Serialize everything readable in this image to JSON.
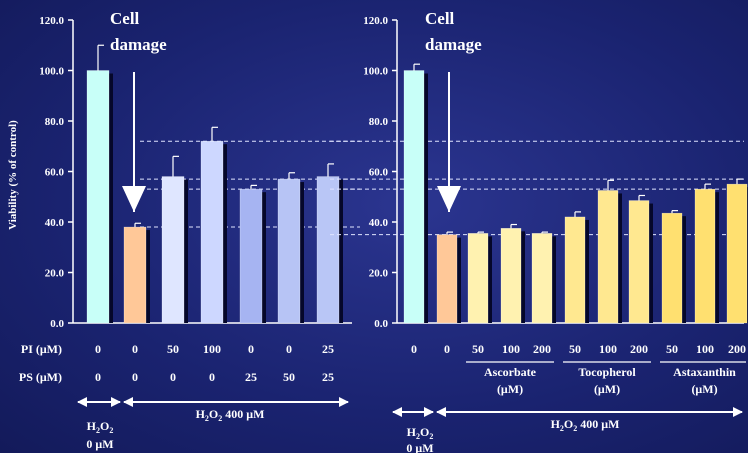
{
  "chart_data": [
    {
      "type": "bar",
      "ylabel": "Viability (% of control)",
      "ylim": [
        0,
        120
      ],
      "yticks": [
        "0.0",
        "20.0",
        "40.0",
        "60.0",
        "80.0",
        "100.0",
        "120.0"
      ],
      "annotation": [
        "Cell",
        "damage"
      ],
      "values": [
        100,
        38,
        58,
        72,
        53,
        57,
        58
      ],
      "errors": [
        10,
        1.5,
        8,
        5.5,
        1.5,
        2.5,
        5
      ],
      "colors": [
        "#c8fff8",
        "#ffc898",
        "#dfe6ff",
        "#cdd7ff",
        "#a6b4f2",
        "#b7c4f5",
        "#b9c6f6"
      ],
      "rows": [
        {
          "label": "PI (μM)",
          "values": [
            "0",
            "0",
            "50",
            "100",
            "0",
            "0",
            "25"
          ]
        },
        {
          "label": "PS (μM)",
          "values": [
            "0",
            "0",
            "0",
            "0",
            "25",
            "50",
            "25"
          ]
        }
      ],
      "reference_lines": [
        38,
        53,
        57,
        72
      ],
      "control_label": [
        "H2O2",
        "0 μM"
      ],
      "treated_label": "H2O2 400 μM"
    },
    {
      "type": "bar",
      "ylim": [
        0,
        120
      ],
      "yticks": [
        "0.0",
        "20.0",
        "40.0",
        "60.0",
        "80.0",
        "100.0",
        "120.0"
      ],
      "annotation": [
        "Cell",
        "damage"
      ],
      "values": [
        100,
        35,
        35.5,
        37.5,
        35.5,
        42,
        52.5,
        48.5,
        43.5,
        53,
        55
      ],
      "errors": [
        2.5,
        1,
        0.5,
        1.5,
        0.5,
        2,
        4,
        2,
        1,
        2,
        2
      ],
      "colors": [
        "#c8fff8",
        "#ffc898",
        "#fff2b0",
        "#fff2b0",
        "#fff2b0",
        "#ffe890",
        "#ffe890",
        "#ffe890",
        "#ffe070",
        "#ffe070",
        "#ffe070"
      ],
      "row": [
        "0",
        "0",
        "50",
        "100",
        "200",
        "50",
        "100",
        "200",
        "50",
        "100",
        "200"
      ],
      "groups": [
        {
          "name": "Ascorbate",
          "unit": "(μM)"
        },
        {
          "name": "Tocopherol",
          "unit": "(μM)"
        },
        {
          "name": "Astaxanthin",
          "unit": "(μM)"
        }
      ],
      "reference_lines": [
        35,
        53,
        57,
        72
      ],
      "control_label": [
        "H2O2",
        "0 μM"
      ],
      "treated_label": "H2O2 400 μM"
    }
  ]
}
